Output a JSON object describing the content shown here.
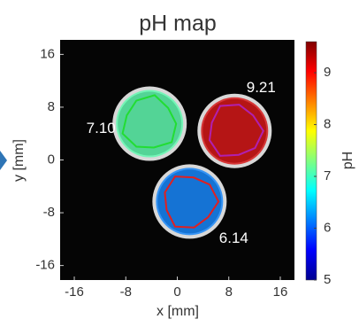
{
  "chart_data": {
    "type": "region-map",
    "title": "pH map",
    "x_label": "x [mm]",
    "y_label": "y [mm]",
    "xlim": [
      -18.2,
      18.2
    ],
    "ylim": [
      -18.2,
      18.2
    ],
    "xticks": [
      -16,
      -8,
      0,
      8,
      16
    ],
    "yticks": [
      -16,
      -8,
      0,
      8,
      16
    ],
    "colorbar": {
      "label": "pH",
      "lim": [
        5,
        9.6
      ],
      "ticks": [
        5,
        6,
        7,
        8,
        9
      ]
    },
    "regions": {
      "x": [
        -4.3,
        8.9,
        1.9
      ],
      "y": [
        5.5,
        4.4,
        -6.3
      ],
      "values": [
        7.1,
        9.21,
        6.14
      ],
      "value_labels": [
        "7.10",
        "9.21",
        "6.14"
      ],
      "outline_colors": [
        "#22dd33",
        "#b020b0",
        "#e02020"
      ]
    }
  }
}
